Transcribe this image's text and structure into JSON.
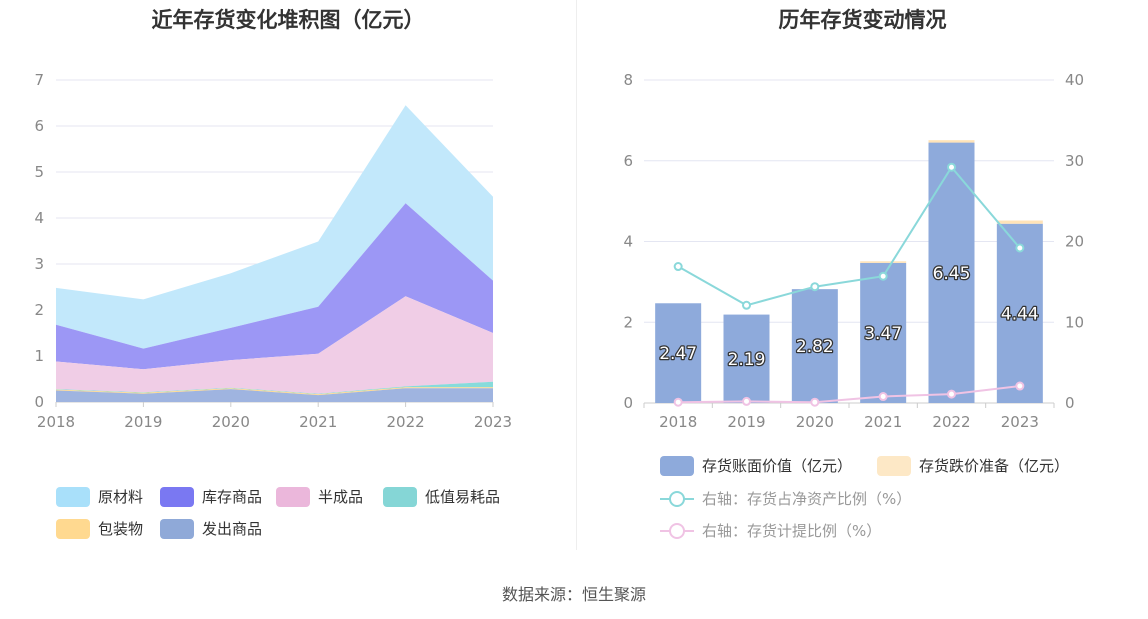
{
  "source_text": "数据来源：恒生聚源",
  "chart_data": [
    {
      "type": "area",
      "stacked": true,
      "title": "近年存货变化堆积图（亿元）",
      "categories": [
        "2018",
        "2019",
        "2020",
        "2021",
        "2022",
        "2023"
      ],
      "ylim": [
        0,
        7
      ],
      "yticks": [
        "0",
        "1",
        "2",
        "3",
        "4",
        "5",
        "6",
        "7"
      ],
      "grid": true,
      "legend_position": "bottom",
      "series": [
        {
          "name": "发出商品",
          "color": "#9fb4e0",
          "values": [
            0.25,
            0.18,
            0.28,
            0.15,
            0.3,
            0.3
          ]
        },
        {
          "name": "包装物",
          "color": "#ffd990",
          "values": [
            0.02,
            0.02,
            0.02,
            0.02,
            0.02,
            0.02
          ]
        },
        {
          "name": "低值易耗品",
          "color": "#87dbdb",
          "values": [
            0.01,
            0.01,
            0.01,
            0.01,
            0.02,
            0.12
          ]
        },
        {
          "name": "半成品",
          "color": "#f0cde6",
          "values": [
            0.6,
            0.5,
            0.6,
            0.87,
            1.96,
            1.06
          ]
        },
        {
          "name": "库存商品",
          "color": "#9c97f5",
          "values": [
            0.8,
            0.45,
            0.7,
            1.02,
            2.02,
            1.14
          ]
        },
        {
          "name": "原材料",
          "color": "#c2e8fb",
          "values": [
            0.8,
            1.07,
            1.19,
            1.42,
            2.13,
            1.82
          ]
        }
      ],
      "legend": [
        {
          "name": "原材料",
          "color": "#a9e0fa"
        },
        {
          "name": "库存商品",
          "color": "#7a78f2"
        },
        {
          "name": "半成品",
          "color": "#ebb7db"
        },
        {
          "name": "低值易耗品",
          "color": "#85d6d6"
        },
        {
          "name": "包装物",
          "color": "#ffd990"
        },
        {
          "name": "发出商品",
          "color": "#8fa9d8"
        }
      ]
    },
    {
      "type": "bar",
      "stacked": true,
      "title": "历年存货变动情况",
      "categories": [
        "2018",
        "2019",
        "2020",
        "2021",
        "2022",
        "2023"
      ],
      "ylim": [
        0,
        8
      ],
      "yticks": [
        "0",
        "2",
        "4",
        "6",
        "8"
      ],
      "y2lim": [
        0,
        40
      ],
      "y2ticks": [
        "0",
        "10",
        "20",
        "30",
        "40"
      ],
      "grid": true,
      "legend_position": "bottom",
      "series": [
        {
          "name": "存货账面价值（亿元）",
          "color": "#8eaadb",
          "values": [
            2.47,
            2.19,
            2.82,
            3.47,
            6.45,
            4.44
          ],
          "labels": [
            "2.47",
            "2.19",
            "2.82",
            "3.47",
            "6.45",
            "4.44"
          ]
        },
        {
          "name": "存货跌价准备（亿元）",
          "color": "#ffe3b8",
          "legend_color": "#fde8c6",
          "values": [
            0.0,
            0.0,
            0.0,
            0.04,
            0.06,
            0.08
          ]
        },
        {
          "name": "右轴：存货占净资产比例（%）",
          "type": "line",
          "axis": "right",
          "color": "#8ad8da",
          "values": [
            16.9,
            12.1,
            14.4,
            15.7,
            29.2,
            19.2
          ]
        },
        {
          "name": "右轴：存货计提比例（%）",
          "type": "line",
          "axis": "right",
          "color": "#f0c3e4",
          "values": [
            0.1,
            0.2,
            0.1,
            0.8,
            1.1,
            2.1
          ]
        }
      ]
    }
  ]
}
